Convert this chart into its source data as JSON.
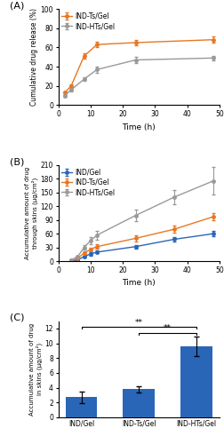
{
  "panel_A": {
    "label": "(A)",
    "IND_Ts_x": [
      2,
      4,
      8,
      12,
      24,
      48
    ],
    "IND_Ts_y": [
      13,
      20,
      51,
      63,
      65,
      68
    ],
    "IND_Ts_err": [
      1.5,
      2,
      3,
      3,
      3,
      3
    ],
    "IND_HTs_x": [
      2,
      4,
      8,
      12,
      24,
      48
    ],
    "IND_HTs_y": [
      10,
      16,
      27,
      37,
      47,
      49
    ],
    "IND_HTs_err": [
      1,
      1.5,
      2,
      3,
      3,
      2.5
    ],
    "color_Ts": "#E87722",
    "color_HTs": "#999999",
    "xlabel": "Time (h)",
    "ylabel": "Cumulative drug release (%)",
    "xlim": [
      0,
      50
    ],
    "ylim": [
      0,
      100
    ],
    "xticks": [
      0,
      10,
      20,
      30,
      40,
      50
    ],
    "yticks": [
      0,
      20,
      40,
      60,
      80,
      100
    ]
  },
  "panel_B": {
    "label": "(B)",
    "IND_x": [
      4,
      6,
      8,
      10,
      12,
      24,
      36,
      48
    ],
    "IND_y": [
      1,
      3,
      10,
      16,
      20,
      32,
      48,
      60
    ],
    "IND_err": [
      0.5,
      1,
      2,
      3,
      3,
      4,
      5,
      6
    ],
    "IND_Ts_x": [
      4,
      6,
      8,
      10,
      12,
      24,
      36,
      48
    ],
    "IND_Ts_y": [
      2,
      6,
      18,
      26,
      32,
      50,
      70,
      97
    ],
    "IND_Ts_err": [
      0.5,
      1.5,
      3,
      4,
      5,
      6,
      7,
      8
    ],
    "IND_HTs_x": [
      4,
      6,
      8,
      10,
      12,
      24,
      36,
      48
    ],
    "IND_HTs_y": [
      3,
      10,
      30,
      45,
      57,
      100,
      140,
      175
    ],
    "IND_HTs_err": [
      1,
      3,
      5,
      8,
      10,
      12,
      15,
      30
    ],
    "color_IND": "#2966B8",
    "color_Ts": "#E87722",
    "color_HTs": "#999999",
    "xlabel": "Time (h)",
    "ylabel": "Accumulative amount of drug\nthrough skins (μg/cm²)",
    "xlim": [
      0,
      50
    ],
    "ylim": [
      0,
      210
    ],
    "xticks": [
      0,
      10,
      20,
      30,
      40,
      50
    ],
    "yticks": [
      0,
      30,
      60,
      90,
      120,
      150,
      180,
      210
    ]
  },
  "panel_C": {
    "label": "(C)",
    "categories": [
      "IND/Gel",
      "IND-Ts/Gel",
      "IND-HTs/Gel"
    ],
    "values": [
      2.7,
      3.8,
      9.6
    ],
    "errors": [
      0.8,
      0.4,
      1.3
    ],
    "bar_color": "#2966B8",
    "ylabel": "Accumulative amount of drug\nin skins (μg/cm²)",
    "ylim": [
      0,
      13
    ],
    "yticks": [
      0,
      2,
      4,
      6,
      8,
      10,
      12
    ]
  }
}
